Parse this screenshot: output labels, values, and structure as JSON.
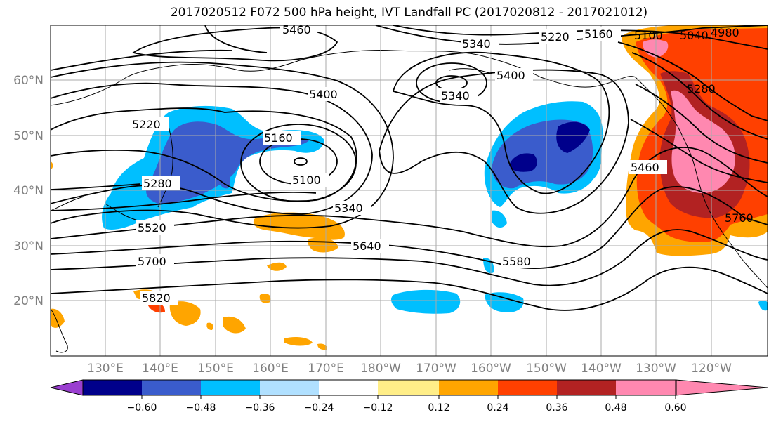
{
  "title": "2017020512 F072 500 hPa height, IVT Landfall PC (2017020812 - 2017021012)",
  "lat_labels": [
    "60°N",
    "50°N",
    "40°N",
    "30°N",
    "20°N"
  ],
  "lon_labels": [
    "130°E",
    "140°E",
    "150°E",
    "160°E",
    "170°E",
    "180°W",
    "170°W",
    "160°W",
    "150°W",
    "140°W",
    "130°W",
    "120°W"
  ],
  "contour_labels": {
    "c5460_top": "5460",
    "c5340_nw": "5340",
    "c5220_ne": "5220",
    "c5160_ne": "5160",
    "c5100_ne": "5100",
    "c5040_ne": "5040",
    "c4980_ne": "4980",
    "c5400_w": "5400",
    "c5220_w": "5220",
    "c5160_w": "5160",
    "c5100_w": "5100",
    "c5340_mid": "5340",
    "c5400_mid": "5400",
    "c5280_e": "5280",
    "c5460_e": "5460",
    "c5280_w": "5280",
    "c5520_w": "5520",
    "c5340_w2": "5340",
    "c5640_mid": "5640",
    "c5700_w": "5700",
    "c5580_mid": "5580",
    "c5760_e": "5760",
    "c5820_w": "5820"
  },
  "colorbar": {
    "colors": [
      "#9a3fd0",
      "#00008b",
      "#3a5ccc",
      "#00bfff",
      "#b0e0ff",
      "#ffffff",
      "#ffee88",
      "#ffa500",
      "#ff4000",
      "#b22222",
      "#ff88b0"
    ],
    "tick_labels": [
      "−0.60",
      "−0.48",
      "−0.36",
      "−0.24",
      "−0.12",
      "0.12",
      "0.24",
      "0.36",
      "0.48",
      "0.60"
    ]
  }
}
